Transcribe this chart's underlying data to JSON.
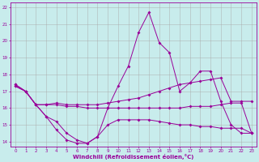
{
  "xlabel": "Windchill (Refroidissement éolien,°C)",
  "background_color": "#c8ecec",
  "line_color": "#990099",
  "grid_color": "#aaaaaa",
  "xlim": [
    -0.5,
    23.5
  ],
  "ylim": [
    13.7,
    22.3
  ],
  "xticks": [
    0,
    1,
    2,
    3,
    4,
    5,
    6,
    7,
    8,
    9,
    10,
    11,
    12,
    13,
    14,
    15,
    16,
    17,
    18,
    19,
    20,
    21,
    22,
    23
  ],
  "yticks": [
    14,
    15,
    16,
    17,
    18,
    19,
    20,
    21,
    22
  ],
  "series": [
    {
      "x": [
        0,
        1,
        2,
        3,
        4,
        5,
        6,
        7,
        8,
        9,
        10,
        11,
        12,
        13,
        14,
        15,
        16,
        17,
        18,
        19,
        20,
        21,
        22,
        23
      ],
      "y": [
        17.4,
        17.0,
        16.2,
        15.5,
        14.7,
        14.1,
        13.9,
        13.9,
        14.3,
        16.0,
        17.3,
        18.5,
        20.5,
        21.7,
        19.9,
        19.3,
        17.0,
        17.5,
        18.2,
        18.2,
        16.4,
        15.0,
        14.5,
        14.5
      ]
    },
    {
      "x": [
        0,
        1,
        2,
        3,
        4,
        5,
        6,
        7,
        8,
        9,
        10,
        11,
        12,
        13,
        14,
        15,
        16,
        17,
        18,
        19,
        20,
        21,
        22,
        23
      ],
      "y": [
        17.4,
        17.0,
        16.2,
        16.2,
        16.3,
        16.2,
        16.2,
        16.2,
        16.2,
        16.3,
        16.4,
        16.5,
        16.6,
        16.8,
        17.0,
        17.2,
        17.4,
        17.5,
        17.6,
        17.7,
        17.8,
        16.4,
        16.4,
        16.4
      ]
    },
    {
      "x": [
        0,
        1,
        2,
        3,
        4,
        5,
        6,
        7,
        8,
        9,
        10,
        11,
        12,
        13,
        14,
        15,
        16,
        17,
        18,
        19,
        20,
        21,
        22,
        23
      ],
      "y": [
        17.3,
        17.0,
        16.2,
        16.2,
        16.2,
        16.1,
        16.1,
        16.0,
        16.0,
        16.0,
        16.0,
        16.0,
        16.0,
        16.0,
        16.0,
        16.0,
        16.0,
        16.1,
        16.1,
        16.1,
        16.2,
        16.3,
        16.3,
        14.5
      ]
    },
    {
      "x": [
        0,
        1,
        2,
        3,
        4,
        5,
        6,
        7,
        8,
        9,
        10,
        11,
        12,
        13,
        14,
        15,
        16,
        17,
        18,
        19,
        20,
        21,
        22,
        23
      ],
      "y": [
        17.3,
        17.0,
        16.2,
        15.5,
        15.2,
        14.5,
        14.1,
        13.9,
        14.3,
        15.0,
        15.3,
        15.3,
        15.3,
        15.3,
        15.2,
        15.1,
        15.0,
        15.0,
        14.9,
        14.9,
        14.8,
        14.8,
        14.8,
        14.5
      ]
    }
  ]
}
